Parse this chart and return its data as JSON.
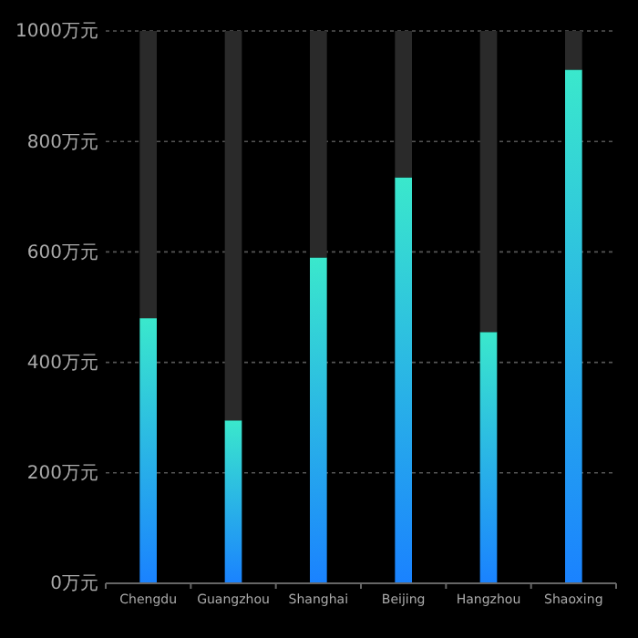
{
  "chart_data": {
    "type": "bar",
    "categories": [
      "Chengdu",
      "Guangzhou",
      "Shanghai",
      "Beijing",
      "Hangzhou",
      "Shaoxing"
    ],
    "series": [
      {
        "color": "#3ae8cc",
        "values": [
          480,
          295,
          590,
          735,
          455,
          930
        ]
      },
      {
        "color": "#2a2a2a",
        "values": [
          520,
          705,
          410,
          265,
          545,
          70
        ]
      }
    ],
    "stacked": true,
    "ylim": [
      0,
      1000
    ],
    "yticks": [
      {
        "value": 0,
        "label": "0万元"
      },
      {
        "value": 200,
        "label": "200万元"
      },
      {
        "value": 400,
        "label": "400万元"
      },
      {
        "value": 600,
        "label": "600万元"
      },
      {
        "value": 800,
        "label": "800万元"
      },
      {
        "value": 1000,
        "label": "1000万元"
      }
    ],
    "grid": "y"
  }
}
